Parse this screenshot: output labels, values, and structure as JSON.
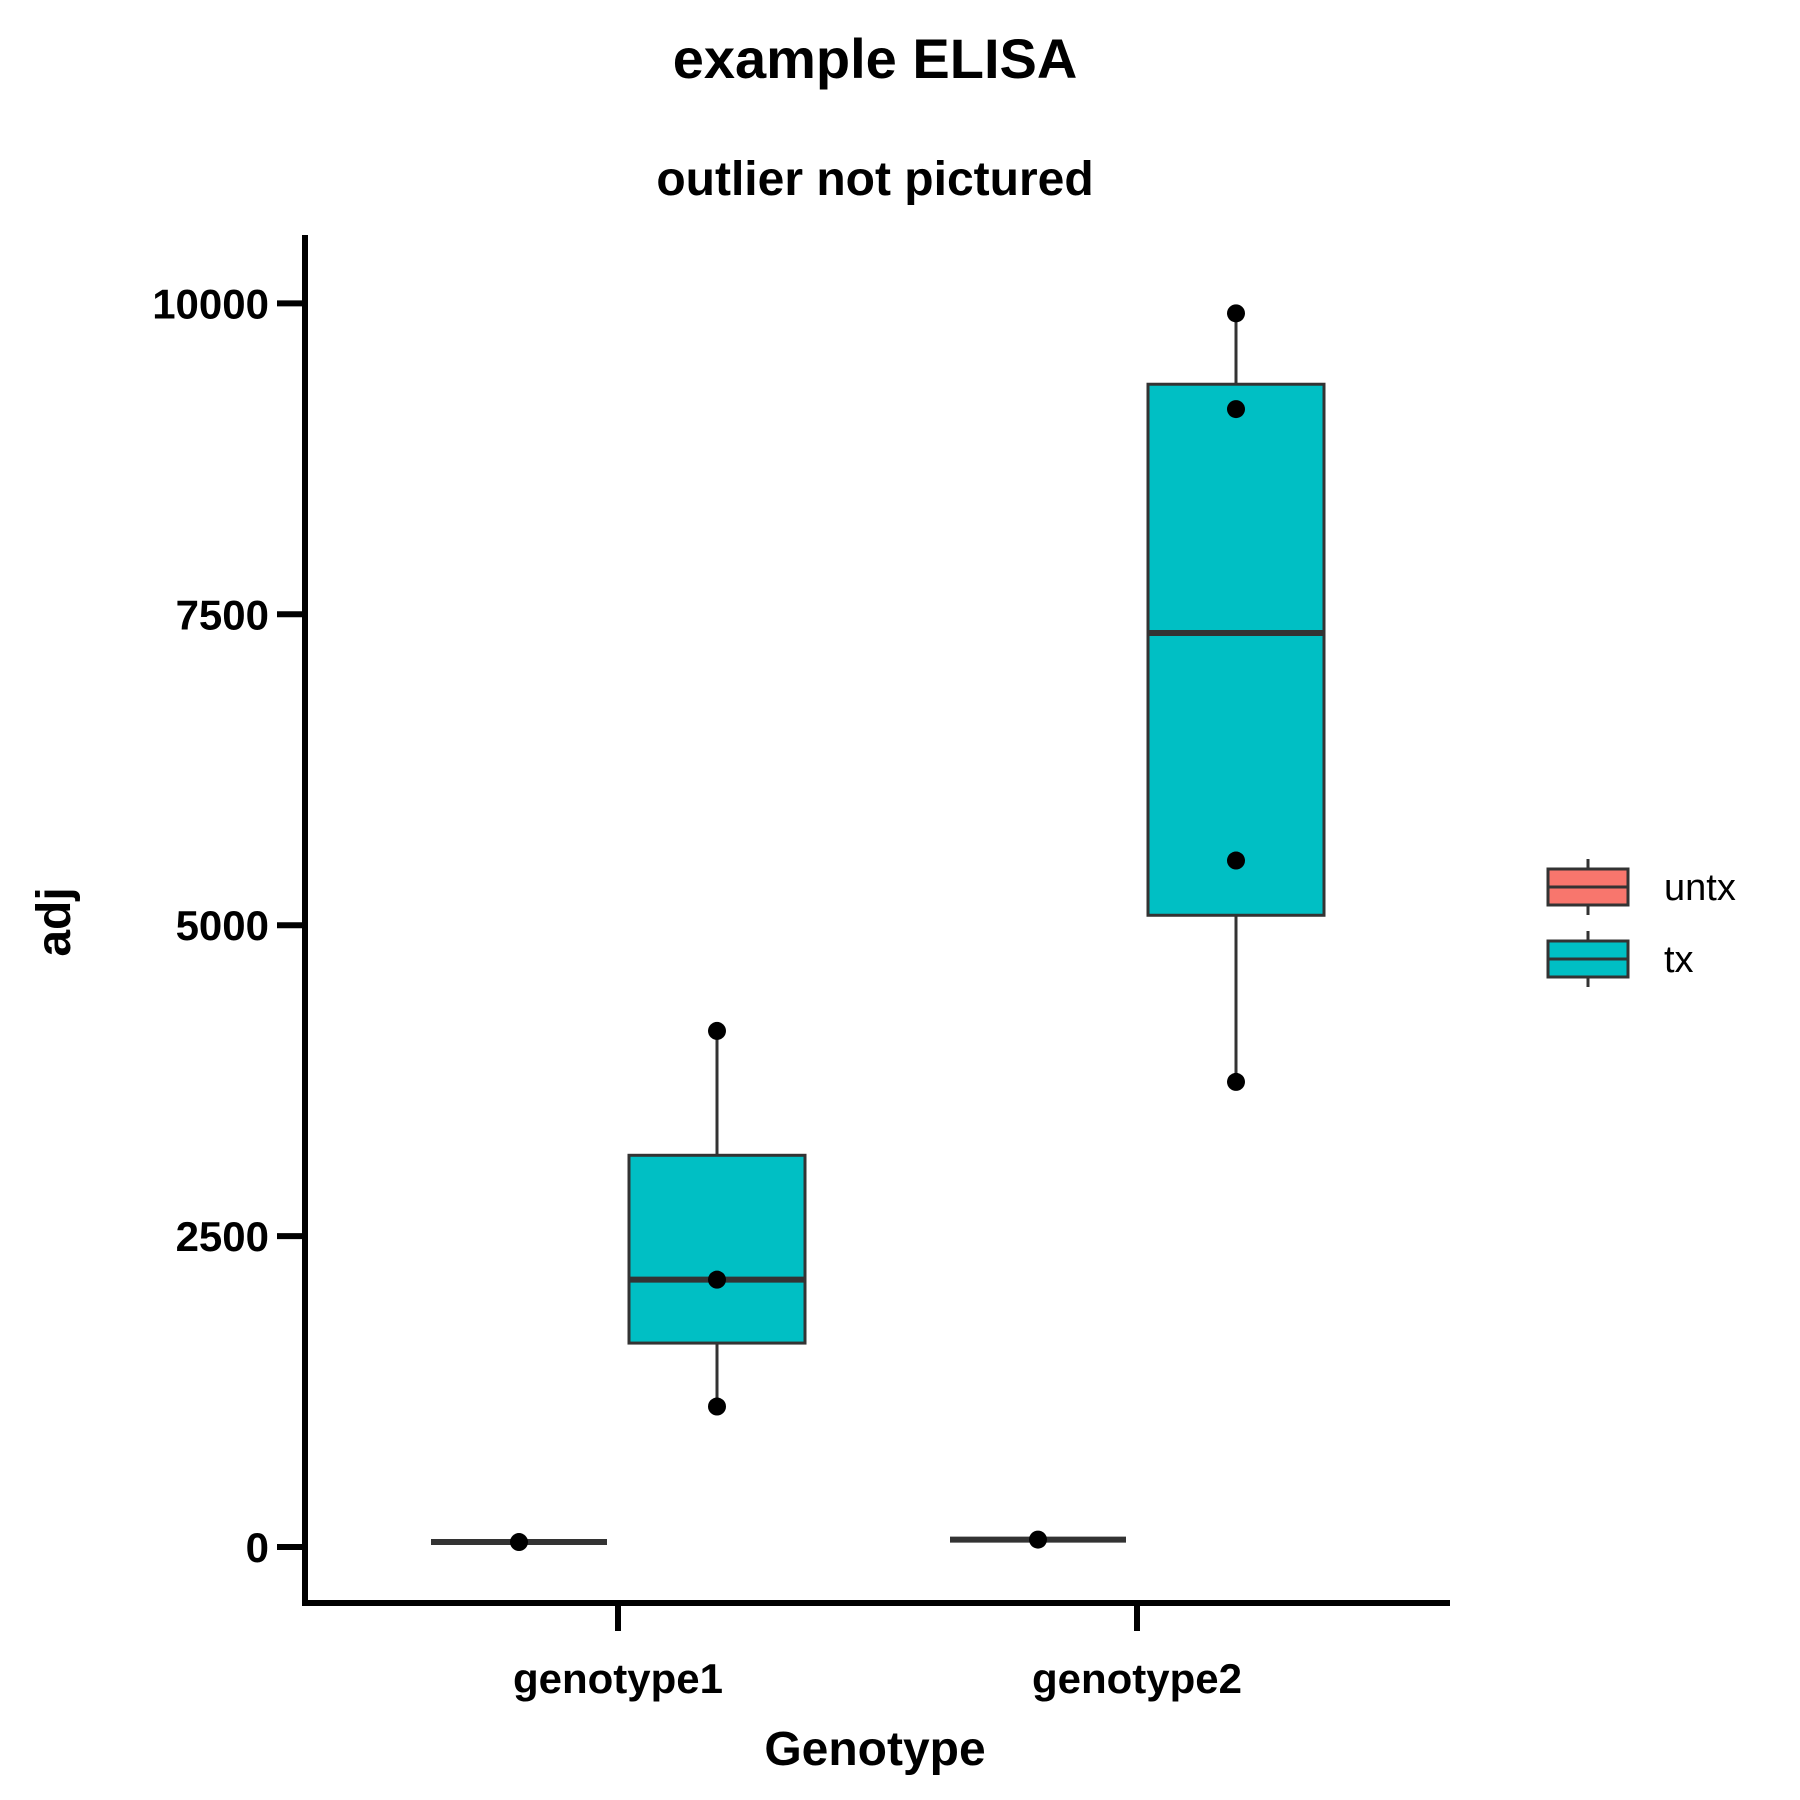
{
  "chart_data": {
    "type": "box",
    "title": "example ELISA",
    "subtitle": "outlier not pictured",
    "xlabel": "Genotype",
    "ylabel": "adj",
    "categories": [
      "genotype1",
      "genotype2"
    ],
    "ylim": [
      -450,
      10550
    ],
    "yticks": [
      0,
      2500,
      5000,
      7500,
      10000
    ],
    "ytick_labels": [
      "0",
      "2500",
      "5000",
      "7500",
      "10000"
    ],
    "grid": false,
    "legend": {
      "position": "right",
      "entries": [
        {
          "label": "untx",
          "color": "#F8766D"
        },
        {
          "label": "tx",
          "color": "#00BFC4"
        }
      ]
    },
    "series": [
      {
        "name": "untx",
        "color": "#F8766D",
        "boxes": [
          {
            "category": "genotype1",
            "min": 40,
            "q1": 40,
            "median": 40,
            "q3": 40,
            "max": 40
          },
          {
            "category": "genotype2",
            "min": 60,
            "q1": 60,
            "median": 60,
            "q3": 60,
            "max": 60
          }
        ],
        "points": [
          {
            "category": "genotype1",
            "y": 40
          },
          {
            "category": "genotype2",
            "y": 60
          }
        ]
      },
      {
        "name": "tx",
        "color": "#00BFC4",
        "boxes": [
          {
            "category": "genotype1",
            "min": 1130,
            "q1": 1640,
            "median": 2150,
            "q3": 3150,
            "max": 4150
          },
          {
            "category": "genotype2",
            "min": 3740,
            "q1": 5080,
            "median": 7350,
            "q3": 9350,
            "max": 9920
          }
        ],
        "points": [
          {
            "category": "genotype1",
            "y": 4150
          },
          {
            "category": "genotype1",
            "y": 2150
          },
          {
            "category": "genotype1",
            "y": 1130
          },
          {
            "category": "genotype2",
            "y": 9920
          },
          {
            "category": "genotype2",
            "y": 9150
          },
          {
            "category": "genotype2",
            "y": 5520
          },
          {
            "category": "genotype2",
            "y": 3740
          }
        ]
      }
    ]
  }
}
